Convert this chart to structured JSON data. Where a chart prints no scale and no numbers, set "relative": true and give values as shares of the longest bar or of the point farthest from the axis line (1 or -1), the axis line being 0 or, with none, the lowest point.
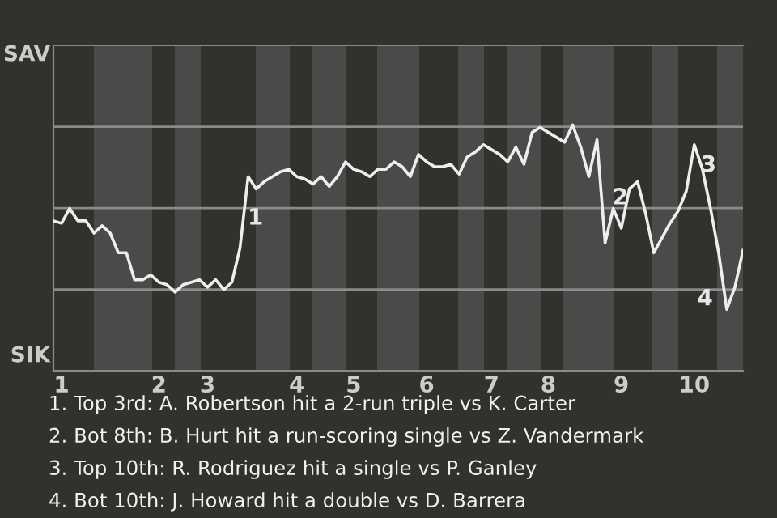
{
  "chart_data": {
    "type": "line",
    "relative": true,
    "categories": [
      null,
      "1",
      null,
      null,
      null,
      null,
      null,
      null,
      null,
      null,
      null,
      null,
      null,
      "2",
      null,
      null,
      null,
      null,
      null,
      "3",
      null,
      null,
      null,
      null,
      null,
      null,
      null,
      null,
      null,
      null,
      "4",
      null,
      null,
      null,
      null,
      null,
      null,
      "5",
      null,
      null,
      null,
      null,
      null,
      null,
      null,
      null,
      "6",
      null,
      null,
      null,
      null,
      null,
      null,
      null,
      "7",
      null,
      null,
      null,
      null,
      null,
      null,
      "8",
      null,
      null,
      null,
      null,
      null,
      null,
      null,
      null,
      "9",
      null,
      null,
      null,
      null,
      null,
      null,
      null,
      null,
      "10",
      null,
      null,
      null,
      null,
      null,
      null
    ],
    "values": [
      0.61,
      0.6,
      0.66,
      0.61,
      0.61,
      0.56,
      0.59,
      0.56,
      0.48,
      0.48,
      0.37,
      0.37,
      0.39,
      0.36,
      0.35,
      0.32,
      0.35,
      0.36,
      0.37,
      0.34,
      0.37,
      0.33,
      0.36,
      0.5,
      0.79,
      0.74,
      0.77,
      0.79,
      0.81,
      0.82,
      0.79,
      0.78,
      0.76,
      0.79,
      0.75,
      0.79,
      0.85,
      0.82,
      0.81,
      0.79,
      0.82,
      0.82,
      0.85,
      0.83,
      0.79,
      0.88,
      0.85,
      0.83,
      0.83,
      0.84,
      0.8,
      0.87,
      0.89,
      0.92,
      0.9,
      0.88,
      0.85,
      0.91,
      0.84,
      0.97,
      0.99,
      0.97,
      0.95,
      0.93,
      1,
      0.91,
      0.79,
      0.94,
      0.52,
      0.66,
      0.58,
      0.74,
      0.77,
      0.64,
      0.48,
      0.54,
      0.6,
      0.65,
      0.73,
      0.92,
      0.82,
      0.66,
      0.48,
      0.25,
      0.34,
      0.49
    ],
    "color": "#eeeeee",
    "ref_lines": [
      {
        "axis": "y",
        "value": 0.331,
        "color": "#8a8a8a"
      },
      {
        "axis": "y",
        "value": 0.662,
        "color": "#8a8a8a"
      },
      {
        "axis": "y",
        "value": 0.993,
        "color": "#8a8a8a"
      }
    ],
    "marker": "none",
    "line_style": "solid",
    "annotations": [
      "SAV",
      "SIK",
      "1",
      "2",
      "3",
      "4",
      "1. Top 3rd: A. Robertson hit a 2-run triple vs K. Carter",
      "2. Bot 8th: B. Hurt hit a run-scoring single vs Z. Vandermark",
      "3. Top 10th: R. Rodriguez hit a single vs P. Ganley",
      "4. Bot 10th: J. Howard hit a double vs D. Barrera"
    ]
  }
}
